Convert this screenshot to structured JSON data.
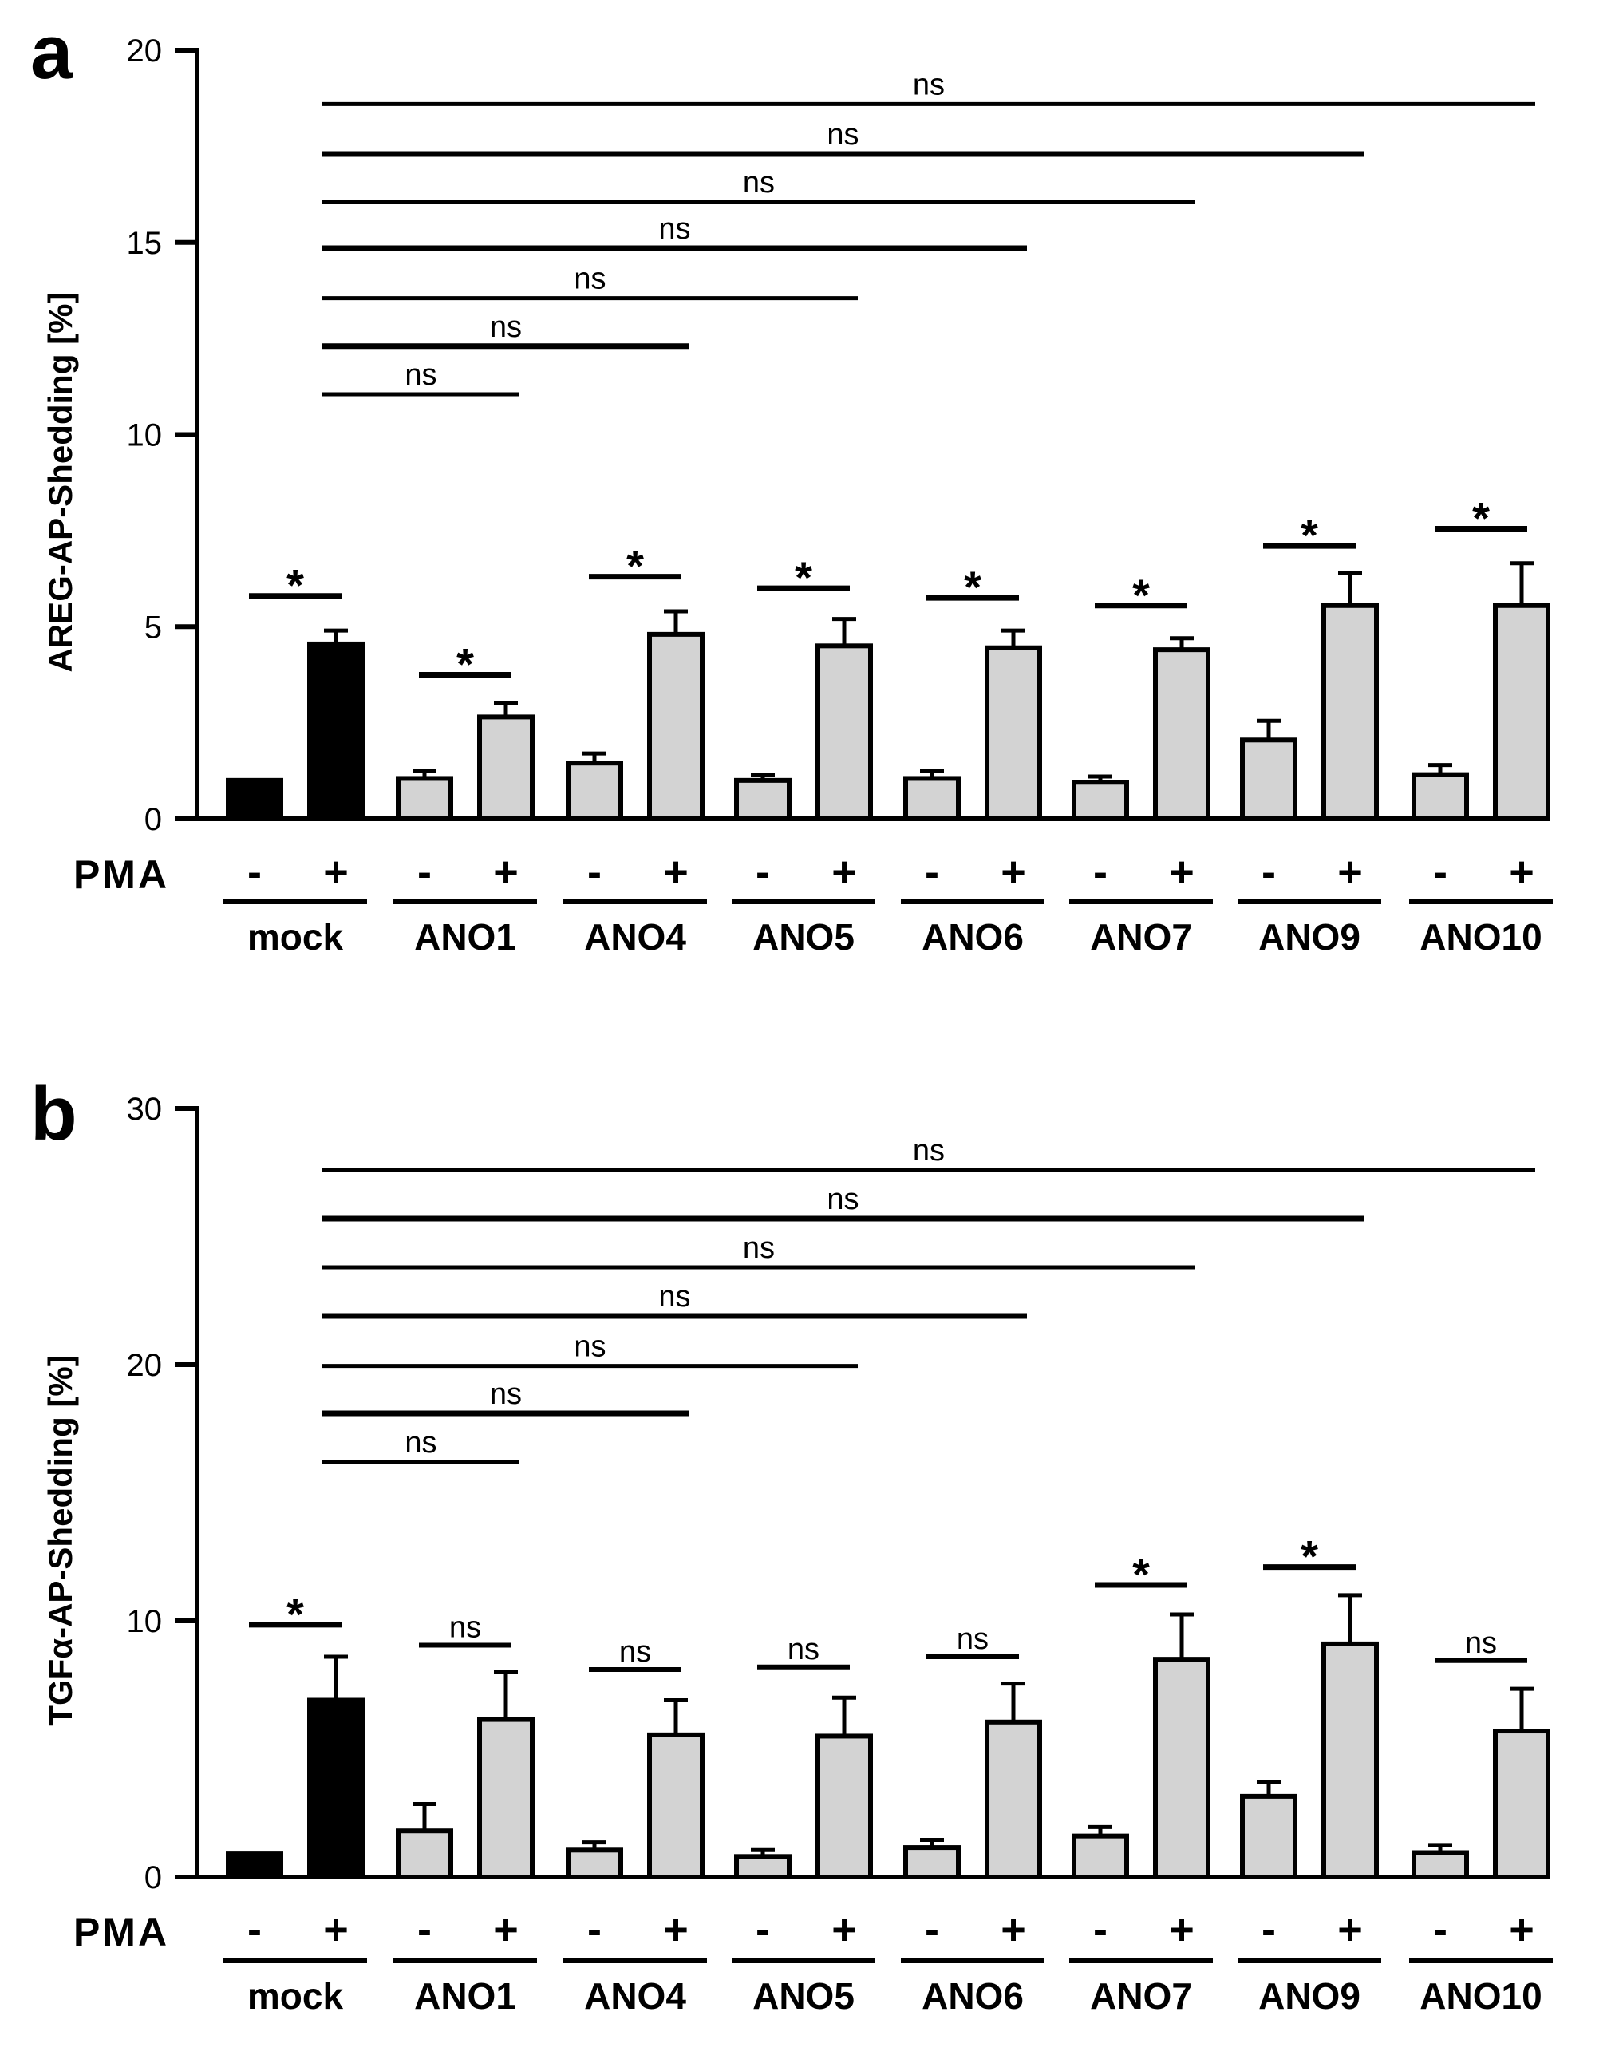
{
  "chart_data": [
    {
      "type": "bar",
      "panel": "a",
      "ylabel": "AREG-AP-Shedding [%]",
      "ylim": [
        0,
        20
      ],
      "yticks": [
        0,
        5,
        10,
        15,
        20
      ],
      "treatment_label": "PMA",
      "treatment_signs": [
        "-",
        "+"
      ],
      "groups": [
        "mock",
        "ANO1",
        "ANO4",
        "ANO5",
        "ANO6",
        "ANO7",
        "ANO9",
        "ANO10"
      ],
      "series": [
        {
          "name": "-",
          "values": [
            1.0,
            1.05,
            1.45,
            1.0,
            1.05,
            0.95,
            2.05,
            1.15
          ],
          "errors": [
            0.0,
            0.2,
            0.25,
            0.15,
            0.2,
            0.15,
            0.5,
            0.25
          ]
        },
        {
          "name": "+",
          "values": [
            4.55,
            2.65,
            4.8,
            4.5,
            4.45,
            4.4,
            5.55,
            5.55
          ],
          "errors": [
            0.35,
            0.35,
            0.6,
            0.7,
            0.45,
            0.3,
            0.85,
            1.1
          ]
        }
      ],
      "bar_colors": {
        "mock": "#000000",
        "other": "#d3d3d3"
      },
      "within_group_stats": [
        {
          "group": "mock",
          "label": "*",
          "y": 5.8
        },
        {
          "group": "ANO1",
          "label": "*",
          "y": 3.75
        },
        {
          "group": "ANO4",
          "label": "*",
          "y": 6.3
        },
        {
          "group": "ANO5",
          "label": "*",
          "y": 6.0
        },
        {
          "group": "ANO6",
          "label": "*",
          "y": 5.75
        },
        {
          "group": "ANO7",
          "label": "*",
          "y": 5.55
        },
        {
          "group": "ANO9",
          "label": "*",
          "y": 7.1
        },
        {
          "group": "ANO10",
          "label": "*",
          "y": 7.55
        }
      ],
      "comparisons_vs_mock": [
        {
          "to": "ANO1",
          "label": "ns",
          "y": 11.05
        },
        {
          "to": "ANO4",
          "label": "ns",
          "y": 12.3
        },
        {
          "to": "ANO5",
          "label": "ns",
          "y": 13.55
        },
        {
          "to": "ANO6",
          "label": "ns",
          "y": 14.85
        },
        {
          "to": "ANO7",
          "label": "ns",
          "y": 16.05
        },
        {
          "to": "ANO9",
          "label": "ns",
          "y": 17.3
        },
        {
          "to": "ANO10",
          "label": "ns",
          "y": 18.6
        }
      ]
    },
    {
      "type": "bar",
      "panel": "b",
      "ylabel": "TGFα-AP-Shedding [%]",
      "ylim": [
        0,
        30
      ],
      "yticks": [
        0,
        10,
        20,
        30
      ],
      "treatment_label": "PMA",
      "treatment_signs": [
        "-",
        "+"
      ],
      "groups": [
        "mock",
        "ANO1",
        "ANO4",
        "ANO5",
        "ANO6",
        "ANO7",
        "ANO9",
        "ANO10"
      ],
      "series": [
        {
          "name": "-",
          "values": [
            0.9,
            1.8,
            1.05,
            0.8,
            1.15,
            1.6,
            3.15,
            0.95
          ],
          "errors": [
            0.0,
            1.05,
            0.3,
            0.25,
            0.3,
            0.35,
            0.55,
            0.3
          ]
        },
        {
          "name": "+",
          "values": [
            6.9,
            6.15,
            5.55,
            5.5,
            6.05,
            8.5,
            9.1,
            5.7
          ],
          "errors": [
            1.7,
            1.85,
            1.35,
            1.5,
            1.5,
            1.75,
            1.9,
            1.65
          ]
        }
      ],
      "bar_colors": {
        "mock": "#000000",
        "other": "#d3d3d3"
      },
      "within_group_stats": [
        {
          "group": "mock",
          "label": "*",
          "y": 9.85
        },
        {
          "group": "ANO1",
          "label": "ns",
          "y": 9.05
        },
        {
          "group": "ANO4",
          "label": "ns",
          "y": 8.1
        },
        {
          "group": "ANO5",
          "label": "ns",
          "y": 8.2
        },
        {
          "group": "ANO6",
          "label": "ns",
          "y": 8.6
        },
        {
          "group": "ANO7",
          "label": "*",
          "y": 11.4
        },
        {
          "group": "ANO9",
          "label": "*",
          "y": 12.1
        },
        {
          "group": "ANO10",
          "label": "ns",
          "y": 8.45
        }
      ],
      "comparisons_vs_mock": [
        {
          "to": "ANO1",
          "label": "ns",
          "y": 16.2
        },
        {
          "to": "ANO4",
          "label": "ns",
          "y": 18.1
        },
        {
          "to": "ANO5",
          "label": "ns",
          "y": 19.95
        },
        {
          "to": "ANO6",
          "label": "ns",
          "y": 21.9
        },
        {
          "to": "ANO7",
          "label": "ns",
          "y": 23.8
        },
        {
          "to": "ANO9",
          "label": "ns",
          "y": 25.7
        },
        {
          "to": "ANO10",
          "label": "ns",
          "y": 27.6
        }
      ]
    }
  ]
}
